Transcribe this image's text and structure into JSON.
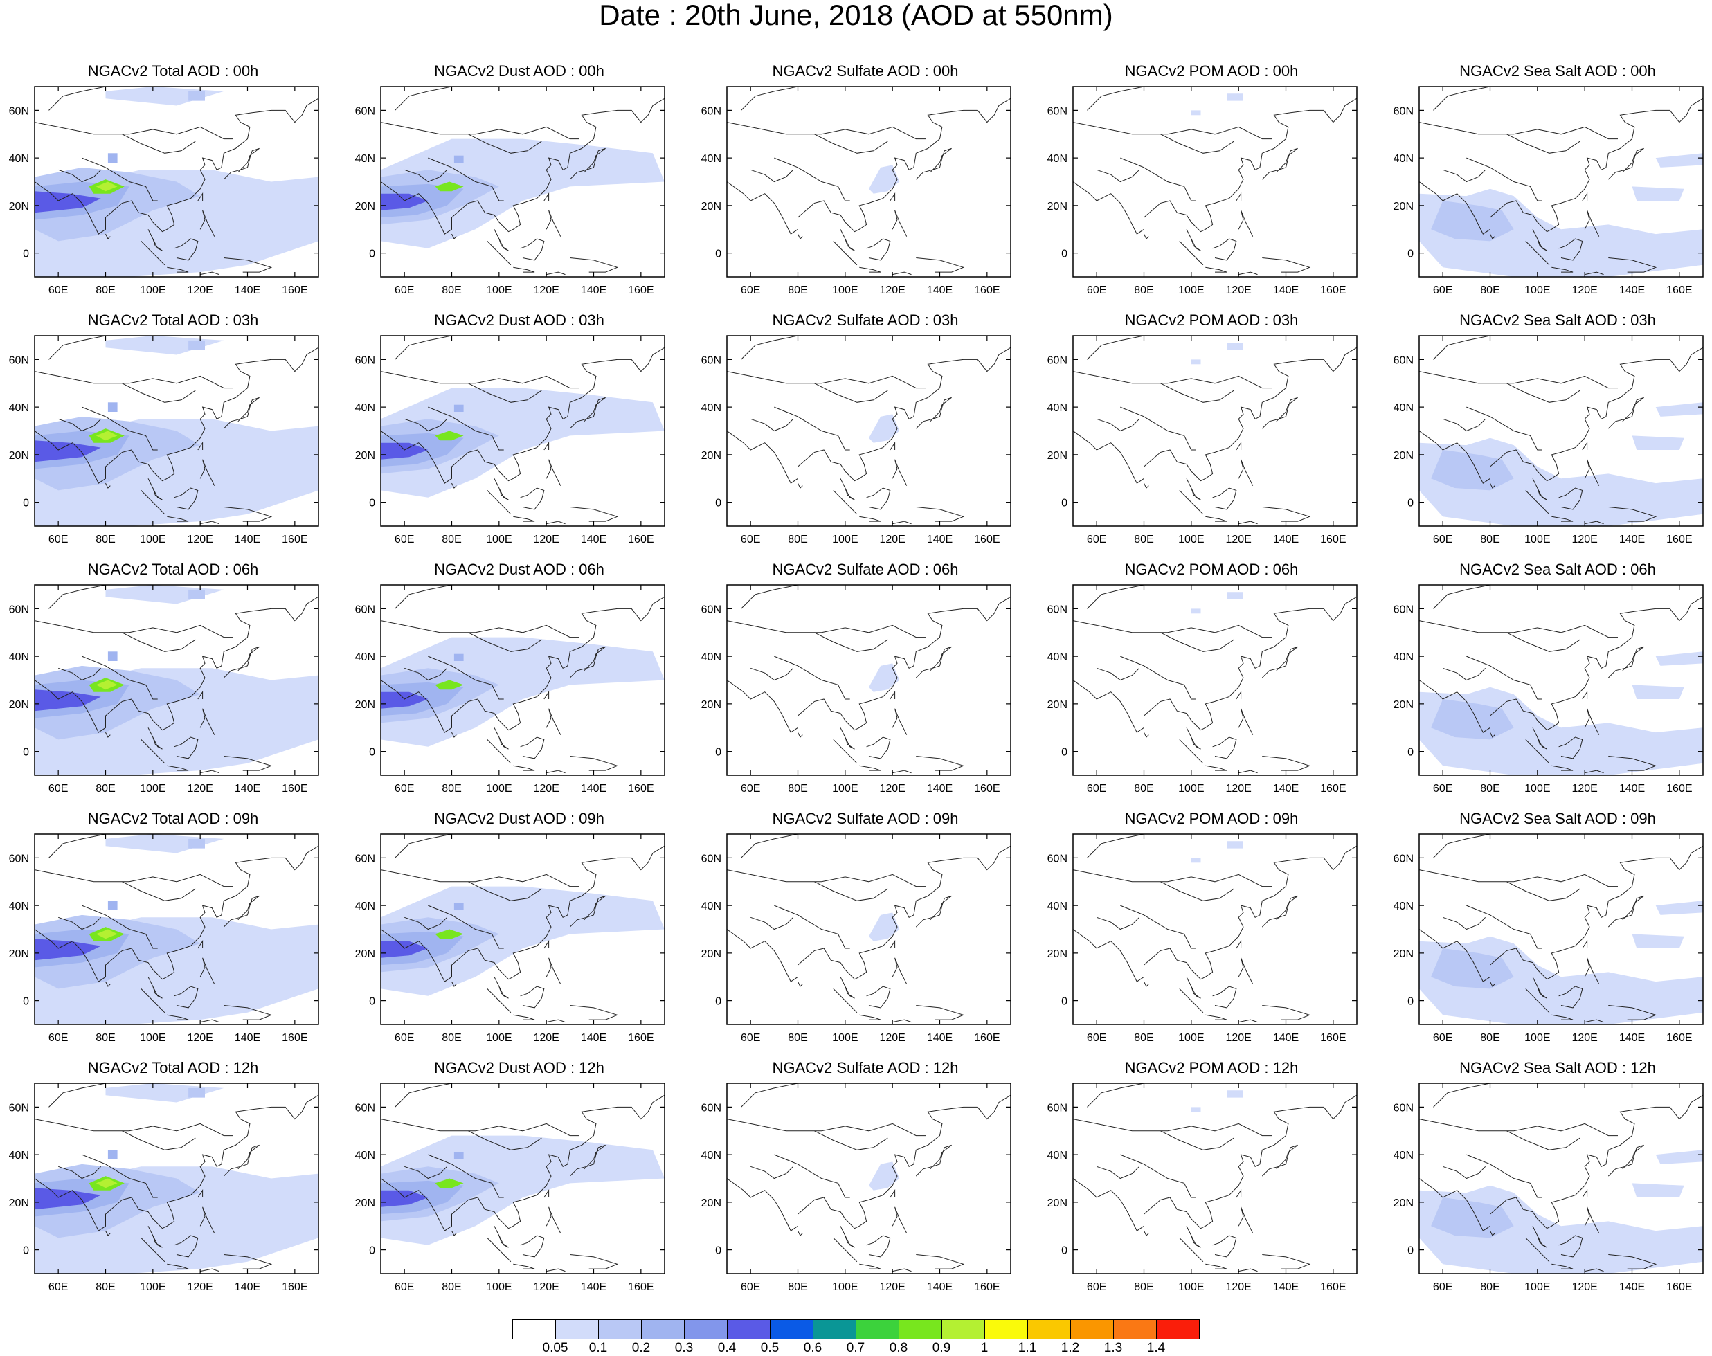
{
  "title": "Date : 20th June, 2018 (AOD at 550nm)",
  "axes": {
    "x_ticks": [
      "60E",
      "80E",
      "100E",
      "120E",
      "140E",
      "160E"
    ],
    "y_ticks": [
      "60N",
      "40N",
      "20N",
      "0"
    ],
    "lon_range": [
      50,
      170
    ],
    "lat_range": [
      -10,
      70
    ]
  },
  "rows": [
    {
      "hour": "00h",
      "titles": [
        "NGACv2 Total AOD : 00h",
        "NGACv2 Dust AOD : 00h",
        "NGACv2 Sulfate AOD : 00h",
        "NGACv2 POM AOD : 00h",
        "NGACv2 Sea Salt AOD : 00h"
      ]
    },
    {
      "hour": "03h",
      "titles": [
        "NGACv2 Total AOD : 03h",
        "NGACv2 Dust AOD : 03h",
        "NGACv2 Sulfate AOD : 03h",
        "NGACv2 POM AOD : 03h",
        "NGACv2 Sea Salt AOD : 03h"
      ]
    },
    {
      "hour": "06h",
      "titles": [
        "NGACv2 Total AOD : 06h",
        "NGACv2 Dust AOD : 06h",
        "NGACv2 Sulfate AOD : 06h",
        "NGACv2 POM AOD : 06h",
        "NGACv2 Sea Salt AOD : 06h"
      ]
    },
    {
      "hour": "09h",
      "titles": [
        "NGACv2 Total AOD : 09h",
        "NGACv2 Dust AOD : 09h",
        "NGACv2 Sulfate AOD : 09h",
        "NGACv2 POM AOD : 09h",
        "NGACv2 Sea Salt  AOD : 09h"
      ]
    },
    {
      "hour": "12h",
      "titles": [
        "NGACv2 Total AOD  : 12h",
        "NGACv2 Dust AOD : 12h",
        "NGACv2 Sulfate AOD : 12h",
        "NGACv2 POM  AOD : 12h",
        "NGACv2 Sea Salt  AOD : 12h"
      ]
    }
  ],
  "colorbar": {
    "labels": [
      "0.05",
      "0.1",
      "0.2",
      "0.3",
      "0.4",
      "0.5",
      "0.6",
      "0.7",
      "0.8",
      "0.9",
      "1",
      "1.1",
      "1.2",
      "1.3",
      "1.4"
    ],
    "colors": [
      "#ffffff",
      "#d2dcfa",
      "#b9c8f5",
      "#a0b4f0",
      "#8296eb",
      "#5a5ae6",
      "#0a5ae6",
      "#0a9696",
      "#3cd23c",
      "#78e61e",
      "#b4f032",
      "#fafa0a",
      "#fac800",
      "#fa9600",
      "#fa7814",
      "#fa1e0a"
    ]
  }
}
